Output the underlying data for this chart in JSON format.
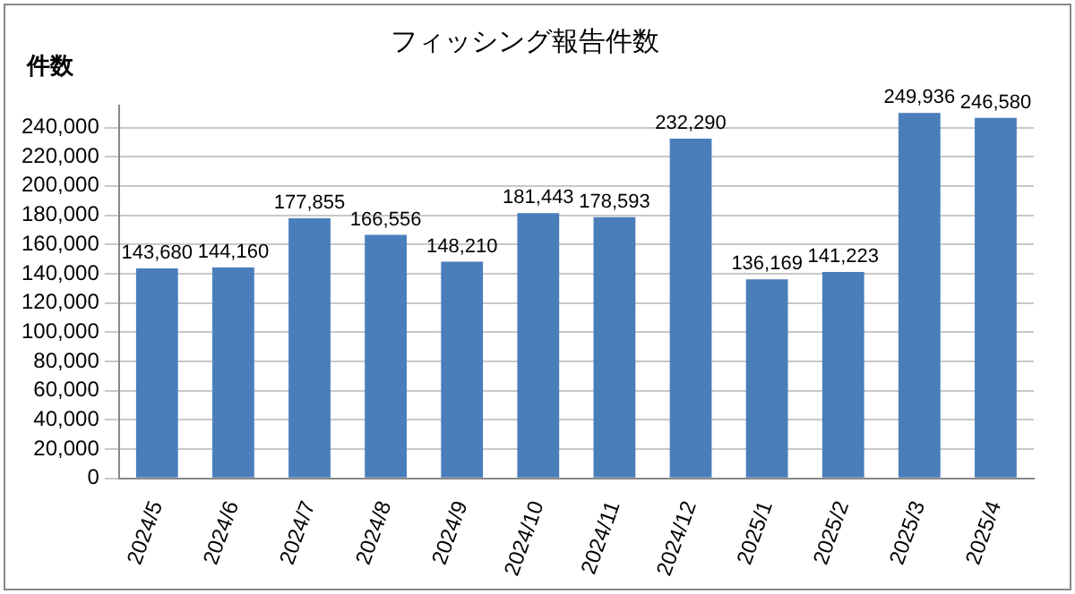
{
  "chart_data": {
    "type": "bar",
    "title": "フィッシング報告件数",
    "ylabel": "件数",
    "categories": [
      "2024/5",
      "2024/6",
      "2024/7",
      "2024/8",
      "2024/9",
      "2024/10",
      "2024/11",
      "2024/12",
      "2025/1",
      "2025/2",
      "2025/3",
      "2025/4"
    ],
    "values": [
      143680,
      144160,
      177855,
      166556,
      148210,
      181443,
      178593,
      232290,
      136169,
      141223,
      249936,
      246580
    ],
    "value_labels": [
      "143,680",
      "144,160",
      "177,855",
      "166,556",
      "148,210",
      "181,443",
      "178,593",
      "232,290",
      "136,169",
      "141,223",
      "249,936",
      "246,580"
    ],
    "color": "#4a7ebb",
    "ylim": [
      0,
      255000
    ],
    "yticks": [
      {
        "value": 0,
        "label": "0"
      },
      {
        "value": 20000,
        "label": "20,000"
      },
      {
        "value": 40000,
        "label": "40,000"
      },
      {
        "value": 60000,
        "label": "60,000"
      },
      {
        "value": 80000,
        "label": "80,000"
      },
      {
        "value": 100000,
        "label": "100,000"
      },
      {
        "value": 120000,
        "label": "120,000"
      },
      {
        "value": 140000,
        "label": "140,000"
      },
      {
        "value": 160000,
        "label": "160,000"
      },
      {
        "value": 180000,
        "label": "180,000"
      },
      {
        "value": 200000,
        "label": "200,000"
      },
      {
        "value": 220000,
        "label": "220,000"
      },
      {
        "value": 240000,
        "label": "240,000"
      }
    ],
    "grid": "y",
    "legend": false
  }
}
